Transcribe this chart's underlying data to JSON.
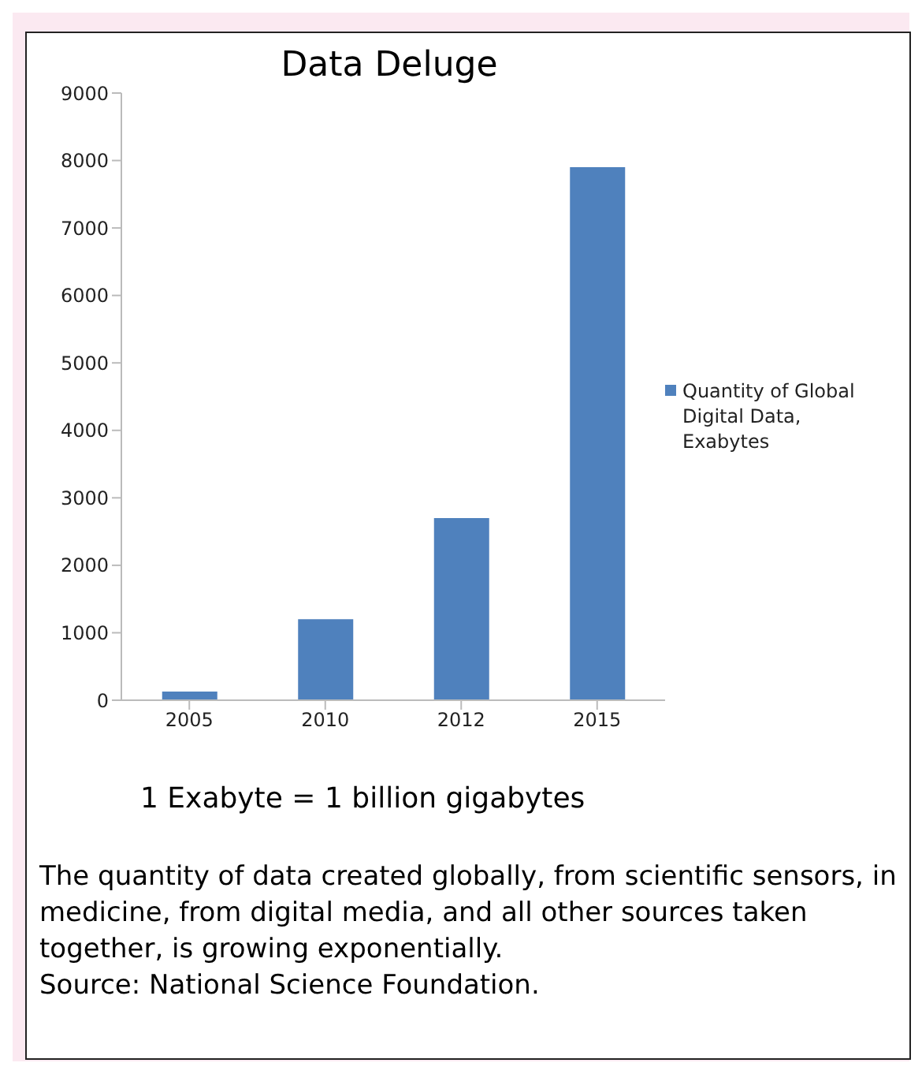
{
  "chart_data": {
    "type": "bar",
    "title": "Data Deluge",
    "categories": [
      "2005",
      "2010",
      "2012",
      "2015"
    ],
    "series": [
      {
        "name": "Quantity of Global Digital Data, Exabytes",
        "color": "#4f81bd",
        "values": [
          130,
          1200,
          2700,
          7900
        ]
      }
    ],
    "ylim": [
      0,
      9000
    ],
    "yticks": [
      0,
      1000,
      2000,
      3000,
      4000,
      5000,
      6000,
      7000,
      8000,
      9000
    ],
    "grid": false,
    "legend": "right",
    "annotations": [
      "1 Exabyte = 1 billion gigabytes",
      "The quantity of data created globally, from scientific sensors, in medicine, from digital media, and all other sources taken together, is growing exponentially.",
      "Source: National Science Foundation."
    ]
  }
}
